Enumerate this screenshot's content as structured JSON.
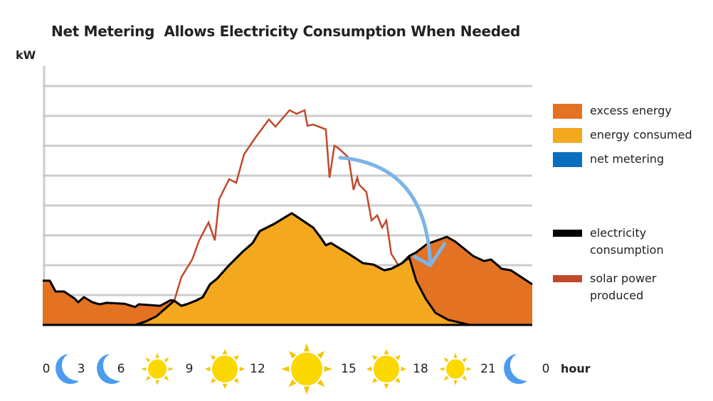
{
  "chart_data": {
    "type": "area",
    "title": "Net Metering  Allows Electricity Consumption When Needed",
    "ylabel": "kW",
    "xlabel": "hour",
    "xlim": [
      0,
      24
    ],
    "ylim": [
      0,
      8.7
    ],
    "grid": true,
    "legend_position": "right",
    "x_tick_labels": [
      "0",
      "3",
      "6",
      "9",
      "12",
      "15",
      "18",
      "21",
      "0"
    ],
    "time_of_day_icons": [
      "moon",
      "moon",
      "sun-small",
      "sun-medium",
      "sun-large",
      "sun-medium",
      "sun-small",
      "moon"
    ],
    "legend": [
      {
        "label": "excess energy",
        "color": "#e37222",
        "kind": "box"
      },
      {
        "label": "energy consumed",
        "color": "#f4a81d",
        "kind": "box"
      },
      {
        "label": "net metering",
        "color": "#0b6ebd",
        "kind": "box"
      },
      {
        "label": "electricity consumption",
        "color": "#000000",
        "kind": "line"
      },
      {
        "label": "solar power produced",
        "color": "#c0492a",
        "kind": "line"
      }
    ],
    "series": [
      {
        "name": "electricity consumption",
        "color": "#000000",
        "x": [
          0,
          0.35,
          0.63,
          1.05,
          1.57,
          1.74,
          2.02,
          2.44,
          2.79,
          3.14,
          4.01,
          4.53,
          4.71,
          5.76,
          6.28,
          6.45,
          6.8,
          7.05,
          7.5,
          7.85,
          8.2,
          8.55,
          9.07,
          9.77,
          10.29,
          10.64,
          11.34,
          12.21,
          13.26,
          13.6,
          13.88,
          14.13,
          15.0,
          15.7,
          16.22,
          16.74,
          17.09,
          17.62,
          17.97,
          18.31,
          18.84,
          19.81,
          20.23,
          21.1,
          21.63,
          21.98,
          22.5,
          22.95,
          24
        ],
        "y": [
          1.48,
          1.48,
          1.12,
          1.12,
          0.88,
          0.76,
          0.93,
          0.76,
          0.69,
          0.74,
          0.71,
          0.6,
          0.69,
          0.64,
          0.83,
          0.81,
          0.64,
          0.69,
          0.81,
          0.93,
          1.36,
          1.55,
          1.95,
          2.43,
          2.74,
          3.14,
          3.38,
          3.74,
          3.26,
          2.95,
          2.67,
          2.74,
          2.38,
          2.07,
          2.02,
          1.83,
          1.88,
          2.07,
          2.31,
          2.43,
          2.71,
          2.95,
          2.79,
          2.31,
          2.14,
          2.19,
          1.88,
          1.83,
          1.36
        ]
      },
      {
        "name": "solar power produced",
        "color": "#c0492a",
        "x": [
          0,
          4.53,
          5.06,
          5.58,
          6.1,
          6.45,
          6.8,
          7.05,
          7.33,
          7.67,
          8.13,
          8.44,
          8.65,
          9.14,
          9.49,
          9.87,
          10.47,
          11.09,
          11.41,
          12.1,
          12.45,
          12.84,
          12.98,
          13.26,
          13.88,
          14.06,
          14.3,
          14.48,
          15.0,
          15.24,
          15.42,
          15.52,
          15.87,
          16.12,
          16.4,
          16.64,
          16.85,
          17.09,
          17.44,
          17.97,
          18.31,
          18.77,
          19.26,
          19.88,
          20.93,
          24
        ],
        "y": [
          0,
          0,
          0.12,
          0.29,
          0.6,
          0.81,
          1.6,
          1.88,
          2.19,
          2.83,
          3.43,
          2.83,
          4.21,
          4.88,
          4.76,
          5.71,
          6.31,
          6.88,
          6.64,
          7.19,
          7.07,
          7.19,
          6.67,
          6.71,
          6.55,
          4.93,
          6.0,
          5.93,
          5.6,
          4.52,
          4.93,
          4.69,
          4.45,
          3.5,
          3.67,
          3.26,
          3.5,
          2.38,
          2.0,
          2.26,
          1.48,
          0.88,
          0.4,
          0.17,
          0,
          0
        ]
      }
    ],
    "annotation": {
      "kind": "arrow",
      "color": "#7db4e6",
      "from": [
        14.58,
        5.6
      ],
      "to": [
        19.0,
        2.0
      ]
    },
    "fill_colors": {
      "excess": "#e37222",
      "consumed": "#f4a81d",
      "gridline": "#cccccc"
    }
  }
}
